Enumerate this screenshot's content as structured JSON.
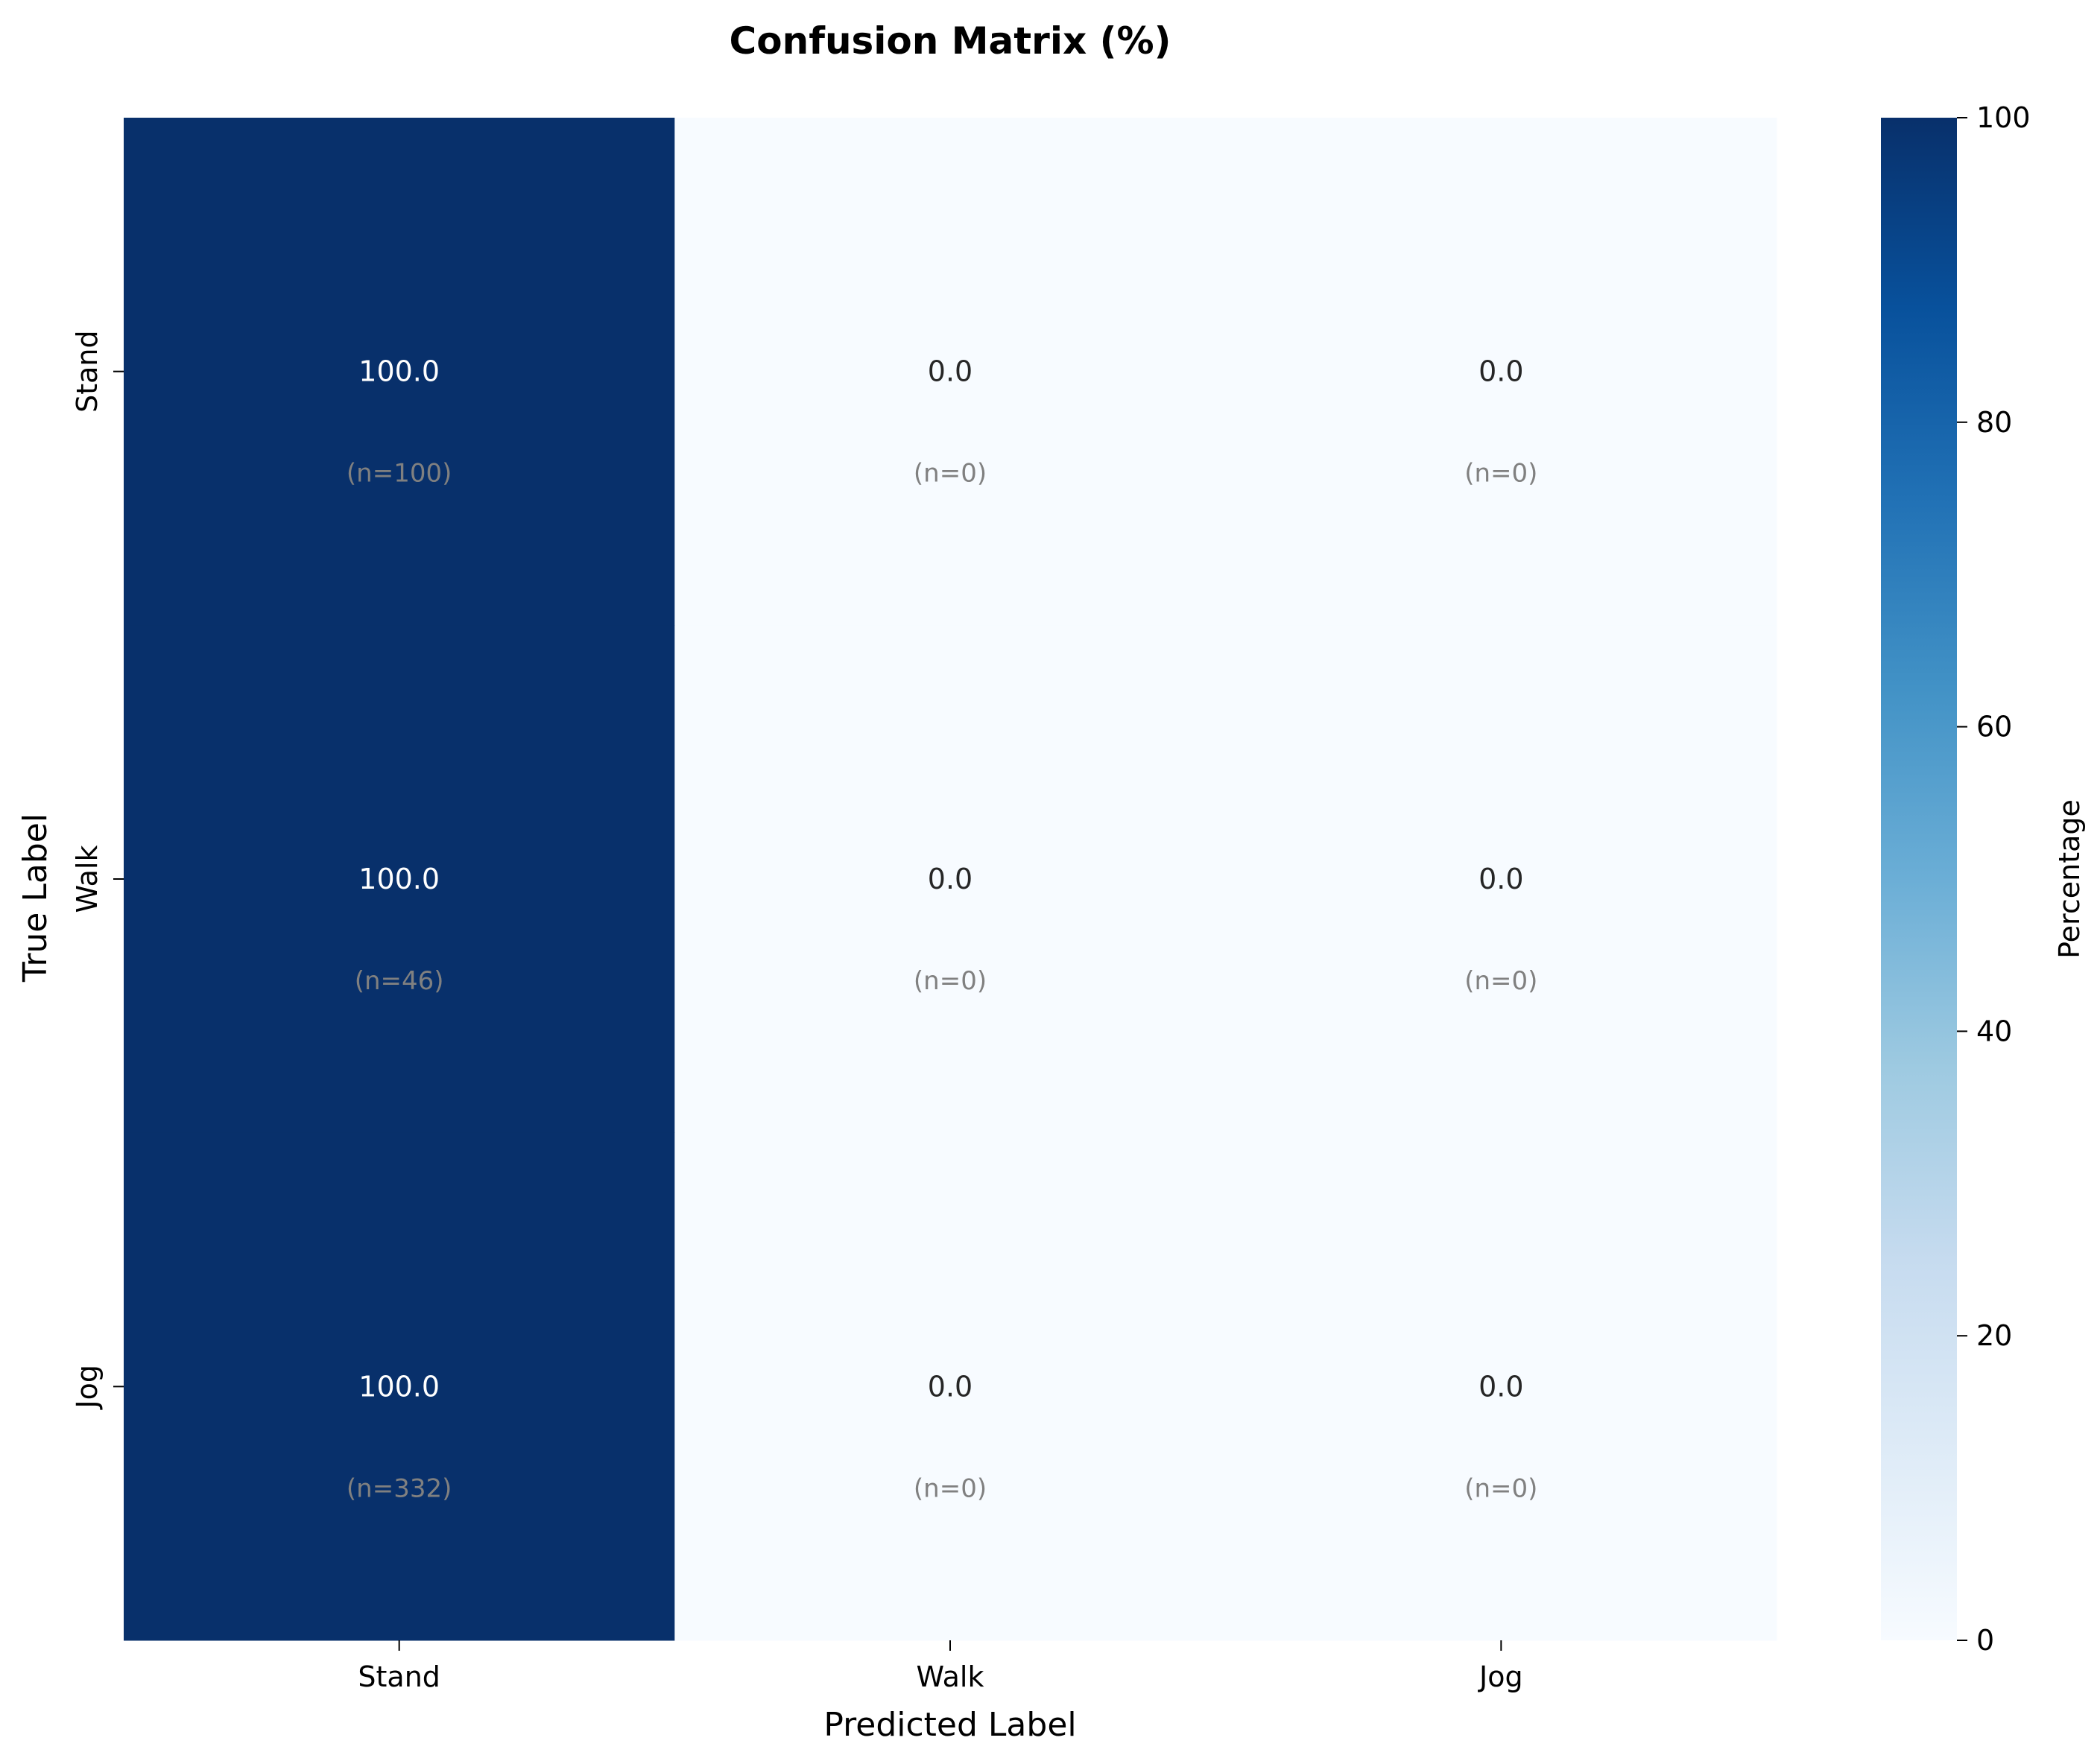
{
  "chart_data": {
    "type": "heatmap",
    "title": "Confusion Matrix (%)",
    "xlabel": "Predicted Label",
    "ylabel": "True Label",
    "x_categories": [
      "Stand",
      "Walk",
      "Jog"
    ],
    "y_categories": [
      "Stand",
      "Walk",
      "Jog"
    ],
    "values": [
      [
        100.0,
        0.0,
        0.0
      ],
      [
        100.0,
        0.0,
        0.0
      ],
      [
        100.0,
        0.0,
        0.0
      ]
    ],
    "value_labels": [
      [
        "100.0",
        "0.0",
        "0.0"
      ],
      [
        "100.0",
        "0.0",
        "0.0"
      ],
      [
        "100.0",
        "0.0",
        "0.0"
      ]
    ],
    "count_labels": [
      [
        "(n=100)",
        "(n=0)",
        "(n=0)"
      ],
      [
        "(n=46)",
        "(n=0)",
        "(n=0)"
      ],
      [
        "(n=332)",
        "(n=0)",
        "(n=0)"
      ]
    ],
    "colormap": "Blues",
    "color_low": "#f7fbff",
    "color_high": "#08306b",
    "colorbar": {
      "label": "Percentage",
      "range": [
        0,
        100
      ],
      "ticks": [
        0,
        20,
        40,
        60,
        80,
        100
      ]
    },
    "grid": false,
    "legend": "colorbar-right"
  }
}
